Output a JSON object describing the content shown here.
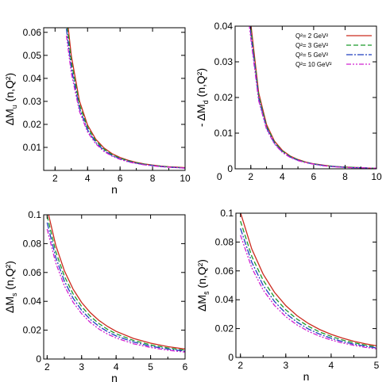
{
  "colors": {
    "series": [
      "#cc2a1f",
      "#1a9a2a",
      "#1f3fbf",
      "#d020d0"
    ],
    "axis": "#000000",
    "background": "#ffffff"
  },
  "legend": {
    "entries": [
      "Q²= 2 GeV²",
      "Q²= 3 GeV²",
      "Q²= 5 GeV²",
      "Q²= 10 GeV²"
    ],
    "panel": 1,
    "placement": "top-right"
  },
  "chart_data": [
    {
      "type": "line",
      "xlabel": "n",
      "ylabel": "ΔM_u (n,Q²)",
      "ylabel_main": "ΔM",
      "ylabel_sub": "u",
      "ylabel_rest": " (n,Q²)",
      "xlim": [
        1.3,
        10
      ],
      "ylim": [
        0,
        0.062
      ],
      "xticks": [
        2,
        4,
        6,
        8,
        10
      ],
      "yticks": [
        0.01,
        0.02,
        0.03,
        0.04,
        0.05,
        0.06
      ],
      "x": [
        2.7,
        3,
        3.5,
        4,
        4.5,
        5,
        5.5,
        6,
        6.5,
        7,
        7.5,
        8,
        8.5,
        9,
        9.5,
        10
      ],
      "series": [
        {
          "name": "Q²= 2 GeV²",
          "values": [
            0.0689,
            0.0498,
            0.0302,
            0.0197,
            0.0136,
            0.0098,
            0.0073,
            0.0056,
            0.0044,
            0.0035,
            0.0028,
            0.0023,
            0.0019,
            0.0016,
            0.0014,
            0.0012
          ]
        },
        {
          "name": "Q²= 3 GeV²",
          "values": [
            0.0653,
            0.0472,
            0.0286,
            0.0187,
            0.0129,
            0.0093,
            0.0069,
            0.0053,
            0.0042,
            0.0033,
            0.0027,
            0.0022,
            0.0018,
            0.0015,
            0.0013,
            0.0011
          ]
        },
        {
          "name": "Q²= 5 GeV²",
          "values": [
            0.0616,
            0.0445,
            0.027,
            0.0176,
            0.0122,
            0.0087,
            0.0065,
            0.005,
            0.0039,
            0.0031,
            0.0025,
            0.0021,
            0.0017,
            0.0014,
            0.0012,
            0.001
          ]
        },
        {
          "name": "Q²= 10 GeV²",
          "values": [
            0.0586,
            0.0423,
            0.0257,
            0.0167,
            0.0116,
            0.0083,
            0.0062,
            0.0048,
            0.0037,
            0.003,
            0.0024,
            0.002,
            0.0016,
            0.0014,
            0.0012,
            0.001
          ]
        }
      ]
    },
    {
      "type": "line",
      "xlabel": "",
      "ylabel": "- ΔM_d (n,Q²)",
      "ylabel_main": "- ΔM",
      "ylabel_sub": "d",
      "ylabel_rest": " (n,Q²)",
      "xlim": [
        1,
        10
      ],
      "ylim": [
        0,
        0.04
      ],
      "xticks": [
        0,
        2,
        4,
        6,
        8,
        10
      ],
      "yticks": [
        0,
        0.01,
        0.02,
        0.03,
        0.04
      ],
      "x": [
        1.9,
        2.0,
        2.5,
        3,
        3.5,
        4,
        4.5,
        5,
        5.5,
        6,
        6.5,
        7,
        7.5,
        8,
        8.5,
        9,
        9.5,
        10
      ],
      "series": [
        {
          "name": "Q²= 2 GeV²",
          "values": [
            0.045,
            0.0406,
            0.0213,
            0.0124,
            0.0078,
            0.0052,
            0.0036,
            0.0026,
            0.0019,
            0.0014,
            0.0011,
            0.0008,
            0.0006,
            0.0005,
            0.0004,
            0.0003,
            0.0002,
            0.0002
          ]
        },
        {
          "name": "Q²= 3 GeV²",
          "values": [
            0.0435,
            0.0392,
            0.0205,
            0.0119,
            0.0075,
            0.005,
            0.0035,
            0.0025,
            0.0018,
            0.0014,
            0.001,
            0.0008,
            0.0006,
            0.0005,
            0.0004,
            0.0003,
            0.0002,
            0.0002
          ]
        },
        {
          "name": "Q²= 5 GeV²",
          "values": [
            0.042,
            0.0378,
            0.0198,
            0.0115,
            0.0072,
            0.0048,
            0.0033,
            0.0024,
            0.0018,
            0.0013,
            0.001,
            0.0007,
            0.0006,
            0.0004,
            0.0003,
            0.0003,
            0.0002,
            0.0002
          ]
        },
        {
          "name": "Q²= 10 GeV²",
          "values": [
            0.0405,
            0.0365,
            0.0191,
            0.0111,
            0.007,
            0.0046,
            0.0032,
            0.0023,
            0.0017,
            0.0013,
            0.0009,
            0.0007,
            0.0005,
            0.0004,
            0.0003,
            0.0003,
            0.0002,
            0.0002
          ]
        }
      ]
    },
    {
      "type": "line",
      "xlabel": "n",
      "ylabel": "ΔM_s (n,Q²)",
      "ylabel_main": "ΔM",
      "ylabel_sub": "s",
      "ylabel_rest": " (n,Q²)",
      "xlim": [
        1.9,
        6
      ],
      "ylim": [
        0,
        0.1
      ],
      "xticks": [
        2,
        3,
        4,
        5,
        6
      ],
      "yticks": [
        0,
        0.02,
        0.04,
        0.06,
        0.08,
        0.1
      ],
      "x": [
        2.0,
        2.25,
        2.5,
        2.75,
        3,
        3.25,
        3.5,
        3.75,
        4,
        4.5,
        5,
        5.5,
        6
      ],
      "series": [
        {
          "name": "Q²= 2 GeV²",
          "values": [
            0.1043,
            0.0788,
            0.0612,
            0.0486,
            0.0392,
            0.0322,
            0.0268,
            0.0226,
            0.0192,
            0.0143,
            0.011,
            0.0086,
            0.0069
          ]
        },
        {
          "name": "Q²= 3 GeV²",
          "values": [
            0.0992,
            0.0744,
            0.0574,
            0.0453,
            0.0364,
            0.0297,
            0.0246,
            0.0206,
            0.0175,
            0.0129,
            0.0098,
            0.0077,
            0.0061
          ]
        },
        {
          "name": "Q²= 5 GeV²",
          "values": [
            0.0946,
            0.0704,
            0.054,
            0.0423,
            0.0338,
            0.0275,
            0.0227,
            0.019,
            0.016,
            0.0118,
            0.0089,
            0.0069,
            0.0055
          ]
        },
        {
          "name": "Q²= 10 GeV²",
          "values": [
            0.0901,
            0.0666,
            0.0507,
            0.0395,
            0.0314,
            0.0254,
            0.0208,
            0.0173,
            0.0146,
            0.0106,
            0.008,
            0.0061,
            0.0048
          ]
        }
      ]
    },
    {
      "type": "line",
      "xlabel": "n",
      "ylabel": "ΔM_s̄ (n,Q²)",
      "ylabel_main": "ΔM",
      "ylabel_sub": "s̄",
      "ylabel_rest": " (n,Q²)",
      "xlim": [
        1.9,
        5
      ],
      "ylim": [
        0,
        0.1
      ],
      "xticks": [
        2,
        3,
        4,
        5
      ],
      "yticks": [
        0,
        0.02,
        0.04,
        0.06,
        0.08,
        0.1
      ],
      "x": [
        2.0,
        2.25,
        2.5,
        2.75,
        3,
        3.25,
        3.5,
        3.75,
        4,
        4.25,
        4.5,
        4.75,
        5
      ],
      "series": [
        {
          "name": "Q²= 2 GeV²",
          "values": [
            0.1005,
            0.0752,
            0.0578,
            0.0452,
            0.0359,
            0.0289,
            0.0235,
            0.0193,
            0.016,
            0.0134,
            0.0112,
            0.0095,
            0.0081
          ]
        },
        {
          "name": "Q²= 3 GeV²",
          "values": [
            0.0945,
            0.0701,
            0.0536,
            0.0417,
            0.033,
            0.0265,
            0.0215,
            0.0176,
            0.0146,
            0.0121,
            0.0102,
            0.0086,
            0.0073
          ]
        },
        {
          "name": "Q²= 5 GeV²",
          "values": [
            0.0895,
            0.066,
            0.05,
            0.0388,
            0.0306,
            0.0244,
            0.0197,
            0.0161,
            0.0133,
            0.011,
            0.0092,
            0.0078,
            0.0066
          ]
        },
        {
          "name": "Q²= 10 GeV²",
          "values": [
            0.0848,
            0.0621,
            0.0468,
            0.0361,
            0.0283,
            0.0225,
            0.0181,
            0.0147,
            0.0121,
            0.01,
            0.0084,
            0.007,
            0.006
          ]
        }
      ]
    }
  ]
}
